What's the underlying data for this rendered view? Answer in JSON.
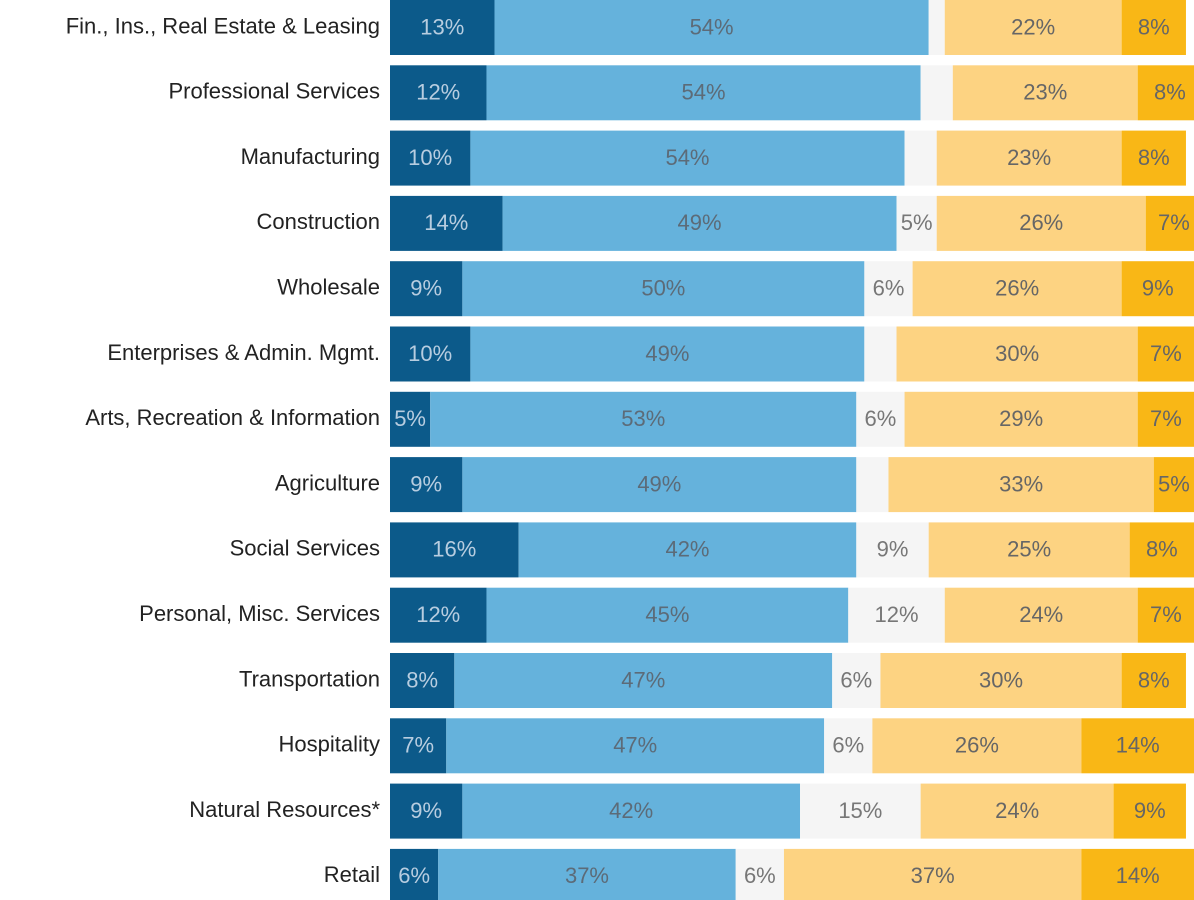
{
  "chart_data": {
    "type": "stacked_barh",
    "categories": [
      "Fin., Ins., Real Estate & Leasing",
      "Professional Services",
      "Manufacturing",
      "Construction",
      "Wholesale",
      "Enterprises & Admin. Mgmt.",
      "Arts, Recreation & Information",
      "Agriculture",
      "Social Services",
      "Personal, Misc. Services",
      "Transportation",
      "Hospitality",
      "Natural Resources*",
      "Retail"
    ],
    "xlim": [
      0,
      100
    ],
    "series": [
      {
        "color": "#0c5a8a",
        "label_color": "#b8cde0",
        "values": [
          13,
          12,
          10,
          14,
          9,
          10,
          5,
          9,
          16,
          12,
          8,
          7,
          9,
          6
        ],
        "value_labels": [
          "13%",
          "12%",
          "10%",
          "14%",
          "9%",
          "10%",
          "5%",
          "9%",
          "16%",
          "12%",
          "8%",
          "7%",
          "9%",
          "6%"
        ]
      },
      {
        "color": "#65b2dc",
        "label_color": "#5c6b78",
        "values": [
          54,
          54,
          54,
          49,
          50,
          49,
          53,
          49,
          42,
          45,
          47,
          47,
          42,
          37
        ],
        "value_labels": [
          "54%",
          "54%",
          "54%",
          "49%",
          "50%",
          "49%",
          "53%",
          "49%",
          "42%",
          "45%",
          "47%",
          "47%",
          "42%",
          "37%"
        ]
      },
      {
        "color": "#f5f5f5",
        "label_color": "#777777",
        "values": [
          2,
          4,
          4,
          5,
          6,
          4,
          6,
          4,
          9,
          12,
          6,
          6,
          15,
          6
        ],
        "value_labels": [
          null,
          null,
          null,
          "5%",
          "6%",
          null,
          "6%",
          null,
          "9%",
          "12%",
          "6%",
          "6%",
          "15%",
          "6%"
        ]
      },
      {
        "color": "#fdd382",
        "label_color": "#666666",
        "values": [
          22,
          23,
          23,
          26,
          26,
          30,
          29,
          33,
          25,
          24,
          30,
          26,
          24,
          37
        ],
        "value_labels": [
          "22%",
          "23%",
          "23%",
          "26%",
          "26%",
          "30%",
          "29%",
          "33%",
          "25%",
          "24%",
          "30%",
          "26%",
          "24%",
          "37%"
        ]
      },
      {
        "color": "#f9b716",
        "label_color": "#666666",
        "values": [
          8,
          8,
          8,
          7,
          9,
          7,
          7,
          5,
          8,
          7,
          8,
          14,
          9,
          14
        ],
        "value_labels": [
          "8%",
          "8%",
          "8%",
          "7%",
          "9%",
          "7%",
          "7%",
          "5%",
          "8%",
          "7%",
          "8%",
          "14%",
          "9%",
          "14%"
        ]
      }
    ]
  }
}
